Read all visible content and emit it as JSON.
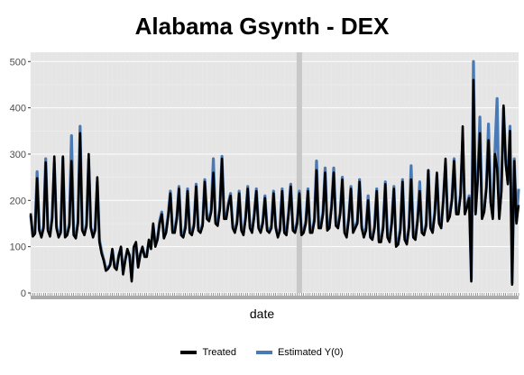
{
  "chart_data": {
    "type": "line",
    "title": "Alabama Gsynth - DEX",
    "xlabel": "date",
    "ylabel": "",
    "ylim": [
      0,
      520
    ],
    "yticks": [
      0,
      100,
      200,
      300,
      400,
      500
    ],
    "grid": true,
    "legend_position": "bottom",
    "treatment_marker_index": 125,
    "colors": {
      "treated": "#000000",
      "estimated": "#4a7ab5",
      "panel": "#e5e5e5",
      "grid": "#f2f2f2",
      "marker": "#c8c8c8"
    },
    "series": [
      {
        "name": "Treated",
        "values": [
          172,
          122,
          128,
          248,
          135,
          120,
          140,
          282,
          135,
          122,
          160,
          295,
          140,
          120,
          130,
          295,
          120,
          125,
          145,
          285,
          125,
          118,
          150,
          345,
          135,
          125,
          145,
          300,
          140,
          120,
          135,
          250,
          110,
          85,
          70,
          48,
          52,
          60,
          95,
          55,
          50,
          80,
          100,
          40,
          70,
          95,
          80,
          25,
          100,
          110,
          55,
          82,
          100,
          78,
          78,
          115,
          95,
          150,
          100,
          115,
          150,
          170,
          118,
          130,
          165,
          215,
          130,
          130,
          160,
          225,
          125,
          120,
          140,
          220,
          130,
          125,
          145,
          230,
          135,
          130,
          145,
          240,
          160,
          155,
          175,
          260,
          150,
          145,
          180,
          290,
          160,
          160,
          190,
          210,
          140,
          130,
          150,
          215,
          135,
          125,
          160,
          225,
          140,
          130,
          165,
          220,
          140,
          130,
          150,
          205,
          135,
          130,
          140,
          215,
          140,
          120,
          135,
          220,
          130,
          125,
          170,
          230,
          135,
          130,
          150,
          215,
          125,
          130,
          150,
          220,
          130,
          130,
          155,
          265,
          140,
          140,
          170,
          260,
          135,
          140,
          185,
          260,
          145,
          140,
          170,
          245,
          130,
          120,
          160,
          225,
          130,
          140,
          150,
          240,
          140,
          120,
          135,
          200,
          120,
          115,
          140,
          220,
          110,
          110,
          140,
          235,
          120,
          110,
          150,
          225,
          100,
          105,
          135,
          240,
          115,
          105,
          140,
          245,
          120,
          115,
          155,
          220,
          130,
          125,
          145,
          265,
          140,
          130,
          170,
          260,
          150,
          140,
          200,
          290,
          155,
          165,
          200,
          285,
          170,
          170,
          210,
          360,
          170,
          185,
          205,
          25,
          460,
          170,
          245,
          345,
          160,
          175,
          225,
          330,
          195,
          160,
          300,
          270,
          160,
          220,
          405,
          280,
          235,
          350,
          18,
          285,
          150,
          190
        ]
      },
      {
        "name": "Estimated Y(0)",
        "values": [
          168,
          125,
          130,
          262,
          138,
          122,
          145,
          290,
          140,
          125,
          165,
          282,
          145,
          125,
          135,
          292,
          125,
          128,
          150,
          340,
          130,
          122,
          155,
          360,
          138,
          128,
          150,
          288,
          142,
          125,
          140,
          240,
          115,
          90,
          72,
          52,
          55,
          62,
          92,
          58,
          55,
          82,
          98,
          45,
          72,
          92,
          82,
          30,
          98,
          105,
          58,
          85,
          98,
          80,
          82,
          112,
          100,
          145,
          105,
          118,
          155,
          175,
          122,
          135,
          170,
          220,
          135,
          135,
          165,
          230,
          130,
          125,
          145,
          225,
          135,
          130,
          150,
          235,
          140,
          135,
          150,
          245,
          165,
          160,
          180,
          290,
          155,
          150,
          185,
          295,
          165,
          165,
          195,
          215,
          145,
          135,
          155,
          220,
          140,
          130,
          165,
          230,
          145,
          135,
          170,
          225,
          145,
          135,
          155,
          210,
          140,
          135,
          145,
          220,
          145,
          125,
          140,
          225,
          135,
          130,
          175,
          235,
          140,
          135,
          155,
          220,
          130,
          135,
          155,
          225,
          135,
          135,
          160,
          285,
          145,
          145,
          175,
          270,
          140,
          145,
          190,
          270,
          150,
          145,
          175,
          250,
          135,
          125,
          165,
          230,
          135,
          145,
          155,
          245,
          145,
          125,
          140,
          210,
          125,
          120,
          145,
          225,
          115,
          115,
          145,
          240,
          125,
          115,
          155,
          230,
          105,
          110,
          140,
          245,
          120,
          110,
          145,
          275,
          125,
          120,
          160,
          240,
          135,
          130,
          150,
          265,
          145,
          135,
          175,
          255,
          155,
          145,
          205,
          280,
          160,
          170,
          205,
          290,
          175,
          175,
          215,
          330,
          175,
          190,
          210,
          30,
          500,
          175,
          250,
          380,
          165,
          180,
          230,
          365,
          200,
          165,
          305,
          420,
          165,
          225,
          400,
          290,
          240,
          360,
          22,
          290,
          155,
          225
        ]
      }
    ]
  }
}
